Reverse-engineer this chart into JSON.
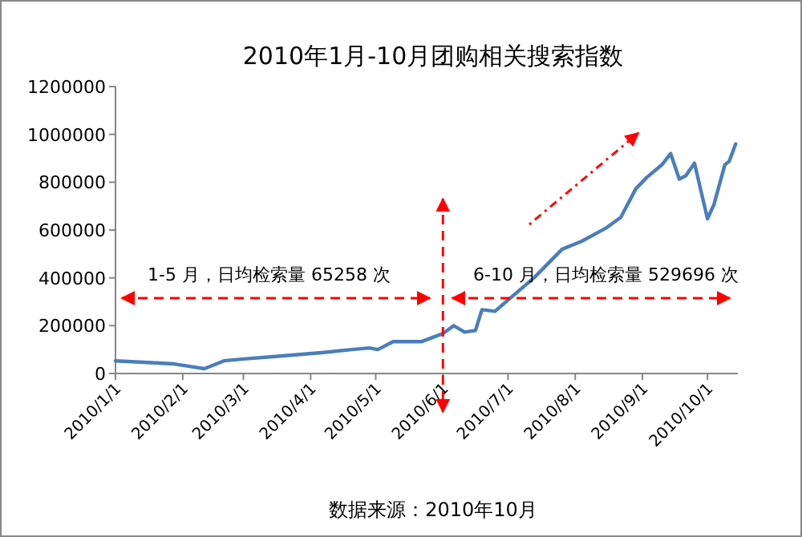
{
  "chart_data": {
    "type": "line",
    "title": "2010年1月-10月团购相关搜索指数",
    "x": [
      "2010-01-01",
      "2010-01-14",
      "2010-01-28",
      "2010-02-06",
      "2010-02-11",
      "2010-02-20",
      "2010-02-28",
      "2010-03-18",
      "2010-04-06",
      "2010-04-20",
      "2010-04-28",
      "2010-05-02",
      "2010-05-09",
      "2010-05-22",
      "2010-06-01",
      "2010-06-06",
      "2010-06-11",
      "2010-06-16",
      "2010-06-19",
      "2010-06-25",
      "2010-07-01",
      "2010-07-13",
      "2010-07-26",
      "2010-08-04",
      "2010-08-15",
      "2010-08-22",
      "2010-08-29",
      "2010-09-03",
      "2010-09-10",
      "2010-09-14",
      "2010-09-18",
      "2010-09-21",
      "2010-09-25",
      "2010-10-01",
      "2010-10-04",
      "2010-10-09",
      "2010-10-11",
      "2010-10-14"
    ],
    "series": [
      {
        "color": "#4a7ebb",
        "values": [
          53000,
          47000,
          40000,
          27000,
          20000,
          53000,
          60000,
          73000,
          87000,
          100000,
          107000,
          100000,
          133000,
          133000,
          167000,
          200000,
          173000,
          180000,
          267000,
          260000,
          307000,
          400000,
          520000,
          553000,
          607000,
          653000,
          773000,
          820000,
          873000,
          920000,
          813000,
          827000,
          880000,
          647000,
          707000,
          873000,
          887000,
          960000
        ]
      }
    ],
    "xlim": [
      "2010-01-01",
      "2010-10-15"
    ],
    "xticks": [
      {
        "value": "2010-01-01",
        "label": "2010/1/1"
      },
      {
        "value": "2010-02-01",
        "label": "2010/2/1"
      },
      {
        "value": "2010-03-01",
        "label": "2010/3/1"
      },
      {
        "value": "2010-04-01",
        "label": "2010/4/1"
      },
      {
        "value": "2010-05-01",
        "label": "2010/5/1"
      },
      {
        "value": "2010-06-01",
        "label": "2010/6/1"
      },
      {
        "value": "2010-07-01",
        "label": "2010/7/1"
      },
      {
        "value": "2010-08-01",
        "label": "2010/8/1"
      },
      {
        "value": "2010-09-01",
        "label": "2010/9/1"
      },
      {
        "value": "2010-10-01",
        "label": "2010/10/1"
      }
    ],
    "ylim": [
      0,
      1200000
    ],
    "yticks": [
      0,
      200000,
      400000,
      600000,
      800000,
      1000000,
      1200000
    ],
    "ref_lines": [
      {
        "axis": "x",
        "value": "2010-06-01",
        "color": "#ff0000",
        "line_style": "dashed"
      }
    ],
    "annotations": [
      "1-5 月，日均检索量 65258 次",
      "6-10 月，日均检索量 529696 次",
      "数据来源：2010年10月"
    ],
    "grid": false,
    "marker": "none",
    "line_style": "solid"
  }
}
